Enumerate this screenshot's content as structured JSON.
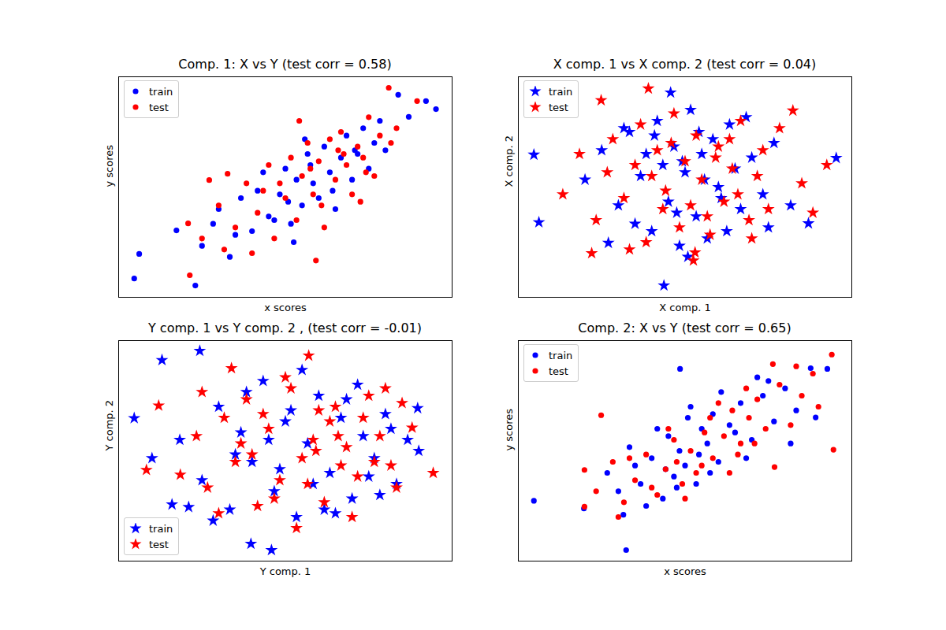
{
  "chart_data": [
    {
      "type": "scatter",
      "title": "Comp. 1: X vs Y (test corr = 0.58)",
      "x_label": "x scores",
      "y_label": "y scores",
      "xlim": [
        -3,
        3
      ],
      "ylim": [
        -3,
        3
      ],
      "xticks": [],
      "yticks": [],
      "tick_labels": false,
      "legend": "upper left",
      "series": [
        {
          "name": "train",
          "color": "#0000ff",
          "marker": "circle",
          "x": [
            -2.72,
            -2.63,
            -1.62,
            2.71,
            2.53,
            2.22,
            2.03,
            -1.96,
            -1.5,
            -1.2,
            -1.0,
            -0.8,
            -0.6,
            -0.4,
            -0.3,
            -0.1,
            0.0,
            0.1,
            0.2,
            0.3,
            0.4,
            0.5,
            0.6,
            0.7,
            0.8,
            0.9,
            1.0,
            1.1,
            1.2,
            1.3,
            1.4,
            1.5,
            1.6,
            1.8,
            -0.9,
            -0.5,
            0.15,
            0.45,
            0.85,
            1.25,
            -1.3,
            -0.2,
            0.35,
            1.7,
            0.05
          ],
          "values": [
            -2.49,
            -1.82,
            -2.68,
            2.12,
            2.34,
            1.91,
            2.51,
            -1.18,
            -1.6,
            -0.6,
            -1.9,
            -0.3,
            -1.2,
            0.4,
            -0.8,
            -0.2,
            0.5,
            -1.0,
            0.2,
            -0.5,
            0.9,
            0.1,
            -0.3,
            1.1,
            0.4,
            -0.6,
            0.8,
            1.4,
            0.2,
            0.9,
            1.6,
            0.5,
            1.2,
            1.0,
            -1.3,
            -0.1,
            -1.5,
            0.6,
            -0.1,
            1.0,
            -1.0,
            -0.9,
            1.3,
            1.8,
            -0.4
          ]
        },
        {
          "name": "test",
          "color": "#ff0000",
          "marker": "circle",
          "x": [
            1.86,
            2.37,
            -1.72,
            -1.75,
            -1.37,
            -1.04,
            0.55,
            -1.5,
            -1.2,
            -0.9,
            -0.7,
            -0.5,
            -0.3,
            -0.2,
            0.0,
            0.1,
            0.2,
            0.3,
            0.4,
            0.5,
            0.6,
            0.7,
            0.8,
            0.9,
            1.0,
            1.1,
            1.2,
            1.3,
            1.4,
            1.5,
            1.6,
            1.7,
            2.0,
            -0.6,
            -0.1,
            0.25,
            0.65,
            1.05,
            1.45,
            -1.1,
            -0.4,
            0.45,
            0.95,
            1.35,
            1.9
          ],
          "values": [
            2.7,
            2.34,
            -2.4,
            -0.99,
            0.19,
            0.36,
            -2.0,
            -1.4,
            -0.5,
            -1.1,
            0.1,
            -0.7,
            0.6,
            -1.4,
            -0.3,
            0.8,
            -0.9,
            0.3,
            1.2,
            -0.2,
            0.7,
            -1.1,
            1.3,
            0.2,
            1.5,
            0.6,
            -0.2,
            1.1,
            0.8,
            1.9,
            0.3,
            1.4,
            1.6,
            -1.8,
            0.1,
            1.8,
            -0.5,
            0.9,
            0.4,
            -1.7,
            -0.1,
            0.5,
            1.0,
            -0.4,
            1.2
          ]
        }
      ]
    },
    {
      "type": "scatter",
      "title": "X comp. 1 vs X comp. 2 (test corr = 0.04)",
      "x_label": "X comp. 1",
      "y_label": "X comp. 2",
      "xlim": [
        -3,
        3
      ],
      "ylim": [
        -3,
        3
      ],
      "xticks": [],
      "yticks": [],
      "tick_labels": false,
      "legend": "upper left",
      "series": [
        {
          "name": "train",
          "color": "#0000ff",
          "marker": "star",
          "x": [
            -2.72,
            -2.63,
            -0.38,
            2.72,
            2.22,
            -0.26,
            -1.38,
            -1.8,
            -1.5,
            -1.2,
            -1.0,
            -0.8,
            -0.6,
            -0.5,
            -0.4,
            -0.3,
            -0.2,
            -0.1,
            0.0,
            0.1,
            0.2,
            0.3,
            0.4,
            0.5,
            0.6,
            0.8,
            1.0,
            1.2,
            1.4,
            1.6,
            1.9,
            -0.9,
            -0.7,
            -0.15,
            0.35,
            0.75,
            1.1,
            -1.1,
            0.05,
            0.9,
            -0.55,
            0.25,
            1.5,
            -0.05,
            0.65
          ],
          "values": [
            0.88,
            -0.96,
            -2.68,
            0.79,
            -0.99,
            2.57,
            -1.52,
            0.2,
            1.0,
            -0.5,
            1.5,
            0.3,
            -1.2,
            1.8,
            0.6,
            -0.4,
            1.1,
            -1.6,
            0.4,
            2.1,
            -0.8,
            0.9,
            -1.4,
            1.3,
            0.0,
            1.7,
            -0.6,
            0.8,
            -0.2,
            1.2,
            -0.5,
            -1.0,
            0.9,
            -0.7,
            0.2,
            -1.2,
            1.9,
            1.6,
            -1.9,
            0.5,
            1.4,
            1.5,
            -1.1,
            0.7,
            -0.3
          ]
        },
        {
          "name": "test",
          "color": "#ff0000",
          "marker": "star",
          "x": [
            -1.68,
            -0.66,
            2.55,
            1.94,
            0.18,
            -1.51,
            -2.2,
            -1.9,
            -1.6,
            -1.3,
            -1.1,
            -0.9,
            -0.7,
            -0.5,
            -0.35,
            -0.2,
            -0.1,
            0.0,
            0.1,
            0.2,
            0.3,
            0.45,
            0.6,
            0.7,
            0.85,
            1.0,
            1.15,
            1.3,
            1.5,
            1.7,
            2.1,
            -1.0,
            -0.6,
            -0.25,
            0.15,
            0.55,
            0.95,
            1.4,
            -0.8,
            0.4,
            1.2,
            -0.4,
            0.8,
            2.3,
            -1.4
          ],
          "values": [
            -1.8,
            2.68,
            0.6,
            2.08,
            -1.78,
            2.36,
            -0.2,
            0.9,
            -0.9,
            1.3,
            -0.3,
            0.6,
            -1.5,
            1.0,
            -0.1,
            2.0,
            -1.1,
            0.7,
            -0.5,
            1.4,
            0.2,
            -1.3,
            1.1,
            -0.4,
            0.5,
            1.8,
            -0.9,
            0.3,
            -0.6,
            1.6,
            0.1,
            -1.7,
            0.3,
            1.2,
            -2.0,
            0.8,
            -0.2,
            1.0,
            1.7,
            -0.8,
            -1.4,
            -0.6,
            1.3,
            -0.7,
            0.4
          ]
        }
      ]
    },
    {
      "type": "scatter",
      "title": "Y comp. 1 vs Y comp. 2 , (test corr = -0.01)",
      "x_label": "Y comp. 1",
      "y_label": "Y comp. 2",
      "xlim": [
        -3,
        3
      ],
      "ylim": [
        -3,
        3
      ],
      "xticks": [],
      "yticks": [],
      "tick_labels": false,
      "legend": "lower left",
      "series": [
        {
          "name": "train",
          "color": "#0000ff",
          "marker": "star",
          "x": [
            -2.72,
            -2.22,
            -1.54,
            -0.25,
            2.38,
            -2.04,
            -1.74,
            -0.62,
            -1.9,
            -1.5,
            -1.2,
            -1.0,
            -0.8,
            -0.6,
            -0.4,
            -0.2,
            0.0,
            0.2,
            0.4,
            0.6,
            0.8,
            1.0,
            1.2,
            1.4,
            1.6,
            1.8,
            2.0,
            2.2,
            -1.3,
            -0.7,
            -0.1,
            0.3,
            0.7,
            1.1,
            1.5,
            1.9,
            -0.9,
            0.5,
            1.3,
            -0.3,
            0.9,
            2.4,
            -2.4,
            0.1,
            1.7
          ],
          "values": [
            0.89,
            2.47,
            2.72,
            -2.7,
            1.16,
            -1.46,
            -1.53,
            -2.53,
            0.3,
            -0.8,
            1.2,
            -1.6,
            0.5,
            -0.3,
            1.9,
            -1.1,
            0.8,
            -1.8,
            0.2,
            1.5,
            -0.6,
            0.9,
            -1.3,
            0.4,
            -0.2,
            1.0,
            -0.9,
            0.3,
            -1.9,
            1.6,
            -0.5,
            2.2,
            -1.6,
            1.4,
            -0.7,
            0.6,
            -0.1,
            -0.9,
            1.8,
            0.3,
            -1.7,
            0.0,
            -0.2,
            1.1,
            -1.2
          ]
        },
        {
          "name": "test",
          "color": "#ff0000",
          "marker": "star",
          "x": [
            -2.5,
            2.66,
            -0.97,
            0.42,
            -2.28,
            -1.89,
            2.28,
            -1.6,
            -1.4,
            -1.1,
            -0.9,
            -0.7,
            -0.5,
            -0.3,
            -0.1,
            0.1,
            0.3,
            0.5,
            0.7,
            0.9,
            1.1,
            1.3,
            1.5,
            1.7,
            1.9,
            2.1,
            -1.2,
            -0.6,
            0.0,
            0.4,
            0.8,
            1.2,
            1.6,
            2.0,
            -0.8,
            0.2,
            0.6,
            1.0,
            1.4,
            -0.4,
            -1.5,
            0.95,
            1.8,
            -0.2,
            0.55
          ],
          "values": [
            -0.52,
            -0.6,
            2.25,
            2.59,
            1.23,
            -0.65,
            0.63,
            0.4,
            -1.0,
            0.9,
            -0.3,
            1.4,
            -1.5,
            0.6,
            -0.8,
            1.7,
            -0.2,
            0.3,
            -1.4,
            1.2,
            0.1,
            -0.7,
            1.5,
            0.4,
            -0.4,
            1.3,
            -1.7,
            -0.1,
            2.0,
            -0.9,
            0.8,
            -1.8,
            -0.3,
            -1.0,
            0.2,
            -2.1,
            1.1,
            -0.4,
            0.9,
            1.0,
            1.6,
            0.4,
            1.7,
            -1.3,
            0.0
          ]
        }
      ]
    },
    {
      "type": "scatter",
      "title": "Comp. 2: X vs Y (test corr = 0.65)",
      "x_label": "x scores",
      "y_label": "y scores",
      "xlim": [
        -3,
        3
      ],
      "ylim": [
        -3,
        3
      ],
      "xticks": [],
      "yticks": [],
      "tick_labels": false,
      "legend": "upper left",
      "series": [
        {
          "name": "train",
          "color": "#0000ff",
          "marker": "circle",
          "x": [
            -2.72,
            -1.06,
            2.56,
            -0.09,
            2.26,
            2.35,
            -1.11,
            -1.82,
            -1.4,
            -1.2,
            -1.0,
            -0.8,
            -0.6,
            -0.4,
            -0.3,
            -0.2,
            -0.1,
            0.0,
            0.1,
            0.2,
            0.3,
            0.4,
            0.5,
            0.6,
            0.8,
            1.0,
            1.2,
            1.4,
            1.6,
            1.8,
            2.0,
            -0.7,
            -0.5,
            -0.15,
            0.25,
            0.65,
            1.1,
            1.5,
            -0.9,
            0.05,
            0.45,
            0.9,
            1.3,
            1.9,
            -0.35
          ],
          "values": [
            -1.36,
            -2.7,
            2.23,
            2.23,
            2.25,
            0.91,
            -1.74,
            -1.57,
            -0.6,
            -1.1,
            0.1,
            -0.9,
            -0.2,
            -1.3,
            0.4,
            -0.7,
            0.0,
            -0.4,
            1.2,
            -0.9,
            0.6,
            0.2,
            1.0,
            -0.3,
            0.7,
            1.3,
            0.3,
            1.5,
            0.8,
            1.7,
            1.1,
            -1.5,
            0.6,
            -1.0,
            -0.1,
            1.6,
            -0.2,
            1.9,
            -0.4,
            0.9,
            -0.6,
            0.5,
            2.0,
            0.2,
            -0.5
          ]
        },
        {
          "name": "test",
          "color": "#ff0000",
          "marker": "circle",
          "x": [
            -1.81,
            -1.81,
            2.67,
            2.64,
            1.58,
            -1.51,
            1.61,
            -1.6,
            -1.3,
            -1.1,
            -0.9,
            -0.7,
            -0.5,
            -0.35,
            -0.2,
            -0.05,
            0.1,
            0.2,
            0.35,
            0.5,
            0.7,
            0.85,
            1.0,
            1.15,
            1.3,
            1.45,
            1.7,
            1.9,
            2.1,
            2.3,
            -1.0,
            -0.6,
            -0.3,
            0.0,
            0.3,
            0.6,
            0.95,
            1.25,
            -1.2,
            -0.15,
            0.45,
            0.8,
            1.1,
            2.0,
            2.4
          ],
          "values": [
            -0.52,
            -1.52,
            0.03,
            2.62,
            2.36,
            0.97,
            -0.44,
            -1.1,
            -0.3,
            -1.4,
            -0.8,
            -0.1,
            -1.2,
            -0.5,
            0.3,
            -0.9,
            0.0,
            -0.6,
            0.5,
            -0.2,
            0.4,
            1.1,
            0.2,
            0.9,
            1.4,
            0.6,
            1.8,
            0.7,
            1.5,
            2.1,
            -0.2,
            -1.0,
            0.6,
            -1.3,
            -0.4,
            1.3,
            -0.1,
            0.2,
            -1.8,
            -0.3,
            0.9,
            -0.6,
            1.7,
            2.3,
            1.2
          ]
        }
      ]
    }
  ]
}
